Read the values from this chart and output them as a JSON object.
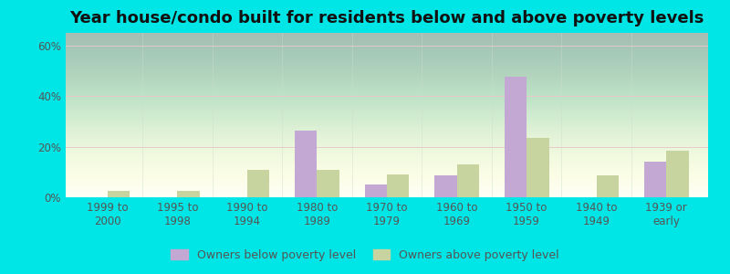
{
  "title": "Year house/condo built for residents below and above poverty levels",
  "categories": [
    "1999 to\n2000",
    "1995 to\n1998",
    "1990 to\n1994",
    "1980 to\n1989",
    "1970 to\n1979",
    "1960 to\n1969",
    "1950 to\n1959",
    "1940 to\n1949",
    "1939 or\nearly"
  ],
  "below_poverty": [
    0.0,
    0.0,
    0.0,
    26.5,
    5.0,
    8.5,
    47.5,
    0.0,
    14.0
  ],
  "above_poverty": [
    2.5,
    2.5,
    11.0,
    11.0,
    9.0,
    13.0,
    23.5,
    8.5,
    18.5
  ],
  "below_color": "#c4a8d4",
  "above_color": "#c8d4a0",
  "outer_bg": "#00e5e5",
  "ylim": [
    0,
    65
  ],
  "yticks": [
    0,
    20,
    40,
    60
  ],
  "ytick_labels": [
    "0%",
    "20%",
    "40%",
    "60%"
  ],
  "legend_below": "Owners below poverty level",
  "legend_above": "Owners above poverty level",
  "title_fontsize": 13,
  "tick_fontsize": 8.5,
  "bar_width": 0.32
}
